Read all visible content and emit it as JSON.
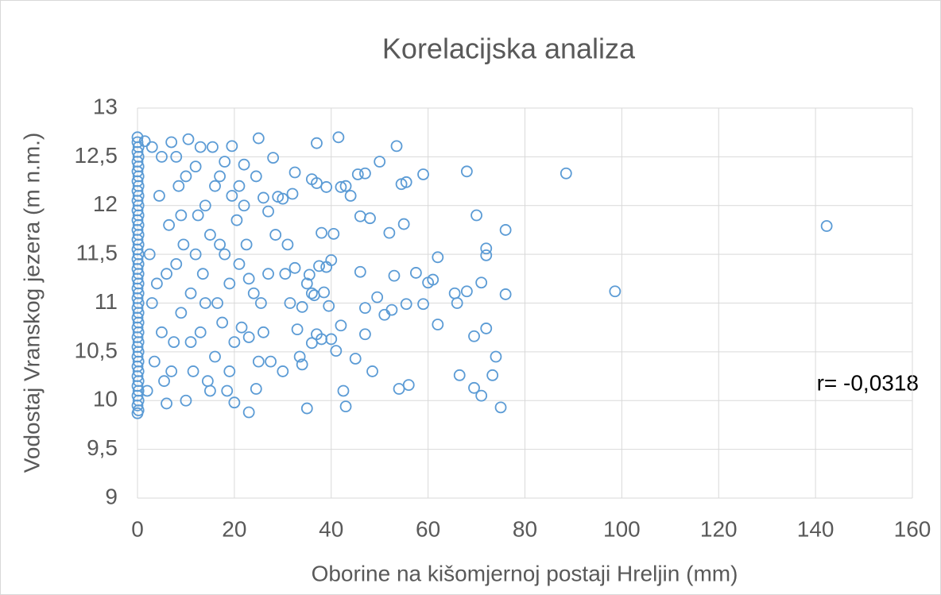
{
  "chart_data": {
    "type": "scatter",
    "title": "Korelacijska analiza",
    "x_label": "Oborine na kišomjernoj postaji Hreljin (mm)",
    "y_label": "Vodostaj Vranskog jezera (m n.m.)",
    "annotation": "r= -0,0318",
    "color": "#5b9bd5",
    "grid": true,
    "xlim": [
      0,
      160
    ],
    "xticks": [
      0,
      20,
      40,
      60,
      80,
      100,
      120,
      140,
      160
    ],
    "ylim": [
      9,
      13
    ],
    "yticks": [
      9,
      {
        "value": 9.5,
        "label": "9,5"
      },
      10,
      {
        "value": 10.5,
        "label": "10,5"
      },
      11,
      {
        "value": 11.5,
        "label": "11,5"
      },
      12,
      {
        "value": 12.5,
        "label": "12,5"
      },
      13
    ],
    "x": [
      0,
      0,
      0,
      0,
      0,
      0,
      0,
      0,
      0,
      0,
      0,
      0,
      0,
      0,
      0,
      0,
      0,
      0,
      0,
      0,
      0,
      0,
      0,
      0,
      0,
      0,
      0,
      0,
      0,
      0,
      0.2,
      0.2,
      0.2,
      0.2,
      0.2,
      0.2,
      0.2,
      0.2,
      0.2,
      0.2,
      0.2,
      0.2,
      0.2,
      0.2,
      0.2,
      0.2,
      0.2,
      0.2,
      0.2,
      0.2,
      0.2,
      0.2,
      0.2,
      0.2,
      0.2,
      0.2,
      0.2,
      0.2,
      142.3,
      98.6,
      88.5,
      75,
      76,
      76,
      74,
      73.3,
      72,
      72,
      72,
      71,
      71,
      70,
      69.5,
      69.5,
      68,
      68,
      66.5,
      66,
      65.5,
      62,
      62,
      61,
      60,
      59,
      59,
      57.5,
      56,
      55.5,
      55.5,
      55,
      54.5,
      54,
      53.5,
      53,
      52.5,
      52,
      51,
      50,
      49.5,
      48.5,
      48,
      47,
      47,
      47,
      46,
      46,
      45.5,
      45,
      44,
      43,
      43,
      42.5,
      42,
      42,
      41.5,
      41,
      40.5,
      40,
      40,
      39.5,
      39,
      39,
      38.5,
      38,
      38,
      37.5,
      37,
      37,
      37,
      36.5,
      36,
      36,
      35.5,
      35,
      34,
      33.5,
      32.5,
      32.5,
      31,
      30,
      29,
      28,
      27,
      26,
      25,
      24.5,
      23,
      22,
      20,
      19.5,
      30,
      30.5,
      31.5,
      32,
      33,
      34,
      35,
      36,
      1.5,
      2,
      3,
      3.5,
      4,
      5,
      5.5,
      6,
      6.5,
      7,
      7.5,
      8,
      8.5,
      9,
      9.5,
      10,
      10.5,
      11,
      11.5,
      12,
      12.5,
      13,
      13.5,
      14,
      14.5,
      15,
      15.5,
      16,
      16.5,
      17,
      17.5,
      18,
      18.5,
      19,
      19.5,
      20,
      20.5,
      21,
      21.5,
      22,
      22.5,
      23,
      24,
      24.5,
      25,
      25.5,
      26,
      27,
      27.5,
      28.5,
      2.5,
      3,
      4.5,
      5,
      6,
      7,
      8,
      9,
      10,
      11,
      12,
      13,
      14,
      15,
      16,
      17,
      18,
      19,
      21,
      23
    ],
    "values": [
      9.87,
      9.95,
      10.05,
      10.15,
      10.25,
      10.35,
      10.45,
      10.55,
      10.65,
      10.75,
      10.85,
      10.95,
      11.05,
      11.15,
      11.25,
      11.35,
      11.45,
      11.55,
      11.65,
      11.75,
      11.85,
      11.95,
      12.05,
      12.15,
      12.25,
      12.35,
      12.45,
      12.55,
      12.65,
      12.7,
      9.9,
      10.0,
      10.1,
      10.2,
      10.3,
      10.4,
      10.5,
      10.6,
      10.7,
      10.8,
      10.9,
      11.0,
      11.1,
      11.2,
      11.3,
      11.4,
      11.5,
      11.6,
      11.7,
      11.8,
      11.9,
      12.0,
      12.1,
      12.2,
      12.3,
      12.4,
      12.5,
      12.6,
      11.79,
      11.12,
      12.33,
      9.93,
      11.75,
      11.09,
      10.45,
      10.26,
      10.74,
      11.56,
      11.49,
      11.21,
      10.05,
      11.9,
      10.13,
      10.66,
      12.35,
      11.12,
      10.26,
      11.0,
      11.1,
      10.78,
      11.47,
      11.24,
      11.21,
      12.32,
      10.99,
      11.31,
      10.16,
      12.24,
      10.99,
      11.81,
      12.22,
      10.12,
      12.61,
      11.28,
      10.93,
      11.72,
      10.88,
      12.45,
      11.06,
      10.3,
      11.87,
      10.95,
      12.33,
      10.68,
      11.89,
      11.32,
      12.32,
      10.43,
      12.1,
      9.94,
      12.2,
      10.1,
      12.19,
      10.77,
      12.7,
      10.51,
      11.71,
      10.63,
      11.44,
      10.97,
      12.19,
      11.37,
      11.11,
      10.63,
      11.72,
      11.38,
      12.23,
      10.68,
      12.64,
      11.08,
      10.59,
      12.27,
      11.29,
      9.92,
      10.37,
      10.45,
      12.34,
      11.36,
      11.6,
      10.3,
      12.09,
      12.49,
      11.94,
      12.08,
      12.69,
      10.12,
      9.88,
      12.42,
      9.98,
      12.61,
      12.07,
      11.3,
      11.0,
      12.12,
      10.73,
      10.96,
      11.2,
      11.1,
      12.66,
      10.1,
      12.6,
      10.4,
      11.2,
      12.5,
      10.2,
      9.97,
      11.8,
      12.65,
      10.6,
      11.4,
      12.2,
      10.9,
      11.6,
      10.0,
      12.68,
      11.1,
      10.3,
      12.4,
      11.9,
      10.7,
      11.3,
      12.0,
      10.2,
      11.7,
      12.6,
      10.45,
      11.0,
      12.3,
      10.8,
      11.5,
      10.1,
      11.2,
      12.1,
      10.6,
      11.85,
      11.4,
      10.75,
      12.0,
      11.6,
      10.65,
      11.1,
      12.3,
      10.4,
      11.0,
      10.7,
      11.3,
      10.4,
      11.7,
      11.5,
      11.0,
      12.1,
      10.7,
      11.3,
      10.3,
      12.5,
      11.9,
      12.3,
      10.6,
      11.5,
      12.6,
      11.0,
      10.1,
      12.2,
      11.6,
      12.45,
      10.3,
      12.2,
      11.25
    ]
  }
}
